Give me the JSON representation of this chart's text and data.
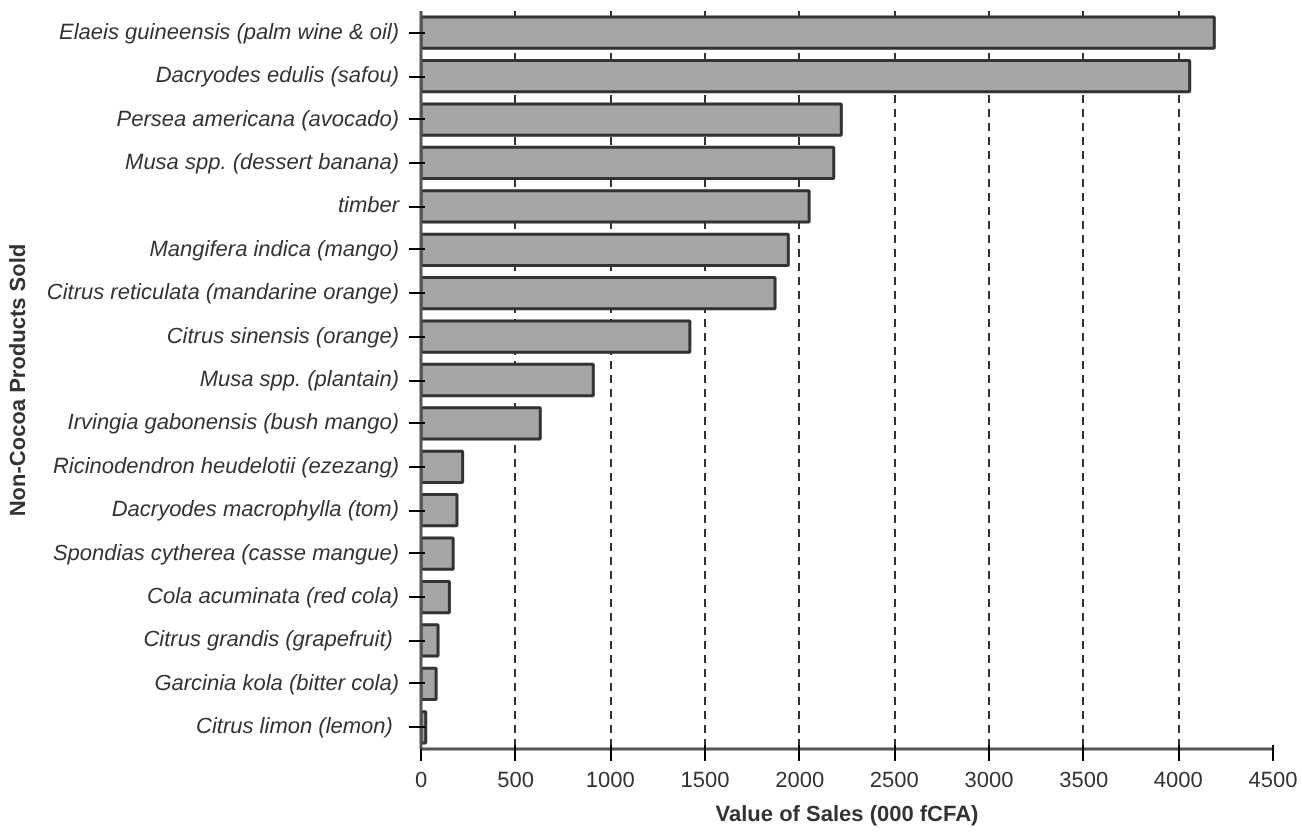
{
  "chart_data": {
    "type": "bar",
    "orientation": "horizontal",
    "categories": [
      "Elaeis guineensis (palm wine & oil)",
      "Dacryodes edulis (safou)",
      "Persea americana (avocado)",
      "Musa spp. (dessert banana)",
      "timber",
      "Mangifera indica (mango)",
      "Citrus reticulata (mandarine orange)",
      "Citrus sinensis (orange)",
      "Musa spp. (plantain)",
      "Irvingia gabonensis (bush mango)",
      "Ricinodendron heudelotii (ezezang)",
      "Dacryodes macrophylla (tom)",
      "Spondias cytherea (casse mangue)",
      "Cola acuminata (red cola)",
      "Citrus grandis  (grapefruit)",
      "Garcinia kola (bitter cola)",
      "Citrus limon  (lemon)"
    ],
    "values": [
      4190,
      4060,
      2220,
      2180,
      2050,
      1940,
      1870,
      1420,
      910,
      630,
      220,
      190,
      170,
      150,
      90,
      80,
      25
    ],
    "color": "#a6a6a6",
    "xlabel": "Value of Sales (000 fCFA)",
    "ylabel": "Non-Cocoa Products Sold",
    "xlim": [
      0,
      4500
    ],
    "xticks": [
      0,
      500,
      1000,
      1500,
      2000,
      2500,
      3000,
      3500,
      4000,
      4500
    ],
    "grid": "x"
  }
}
